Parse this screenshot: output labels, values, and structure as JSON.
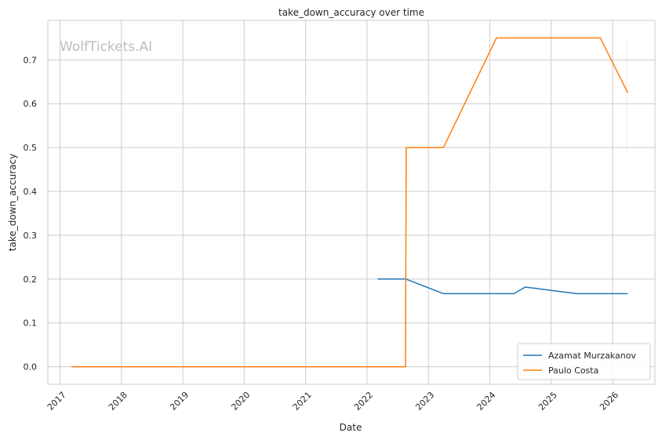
{
  "chart_data": {
    "type": "line",
    "title": "take_down_accuracy over time",
    "xlabel": "Date",
    "ylabel": "take_down_accuracy",
    "watermark": "WolfTickets.AI",
    "x_ticks": [
      "2017",
      "2018",
      "2019",
      "2020",
      "2021",
      "2022",
      "2023",
      "2024",
      "2025",
      "2026"
    ],
    "y_ticks": [
      "0.0",
      "0.1",
      "0.2",
      "0.3",
      "0.4",
      "0.5",
      "0.6",
      "0.7"
    ],
    "xlim": [
      "2016-10-20",
      "2026-09-10"
    ],
    "ylim": [
      -0.04,
      0.79
    ],
    "grid": true,
    "legend_position": "lower-right",
    "series": [
      {
        "name": "Azamat Murzakanov",
        "color": "#1f77b4",
        "points": [
          [
            "2022-03-05",
            0.2
          ],
          [
            "2022-08-20",
            0.2
          ],
          [
            "2023-04-01",
            0.1667
          ],
          [
            "2024-05-25",
            0.1667
          ],
          [
            "2024-07-30",
            0.1818
          ],
          [
            "2025-06-01",
            0.1667
          ],
          [
            "2026-04-01",
            0.1667
          ]
        ]
      },
      {
        "name": "Paulo Costa",
        "color": "#ff7f0e",
        "points": [
          [
            "2017-03-10",
            0.0
          ],
          [
            "2022-08-18",
            0.0
          ],
          [
            "2022-08-22",
            0.5
          ],
          [
            "2023-04-01",
            0.5
          ],
          [
            "2024-02-10",
            0.75
          ],
          [
            "2025-10-20",
            0.75
          ],
          [
            "2026-04-01",
            0.625
          ]
        ]
      }
    ]
  }
}
